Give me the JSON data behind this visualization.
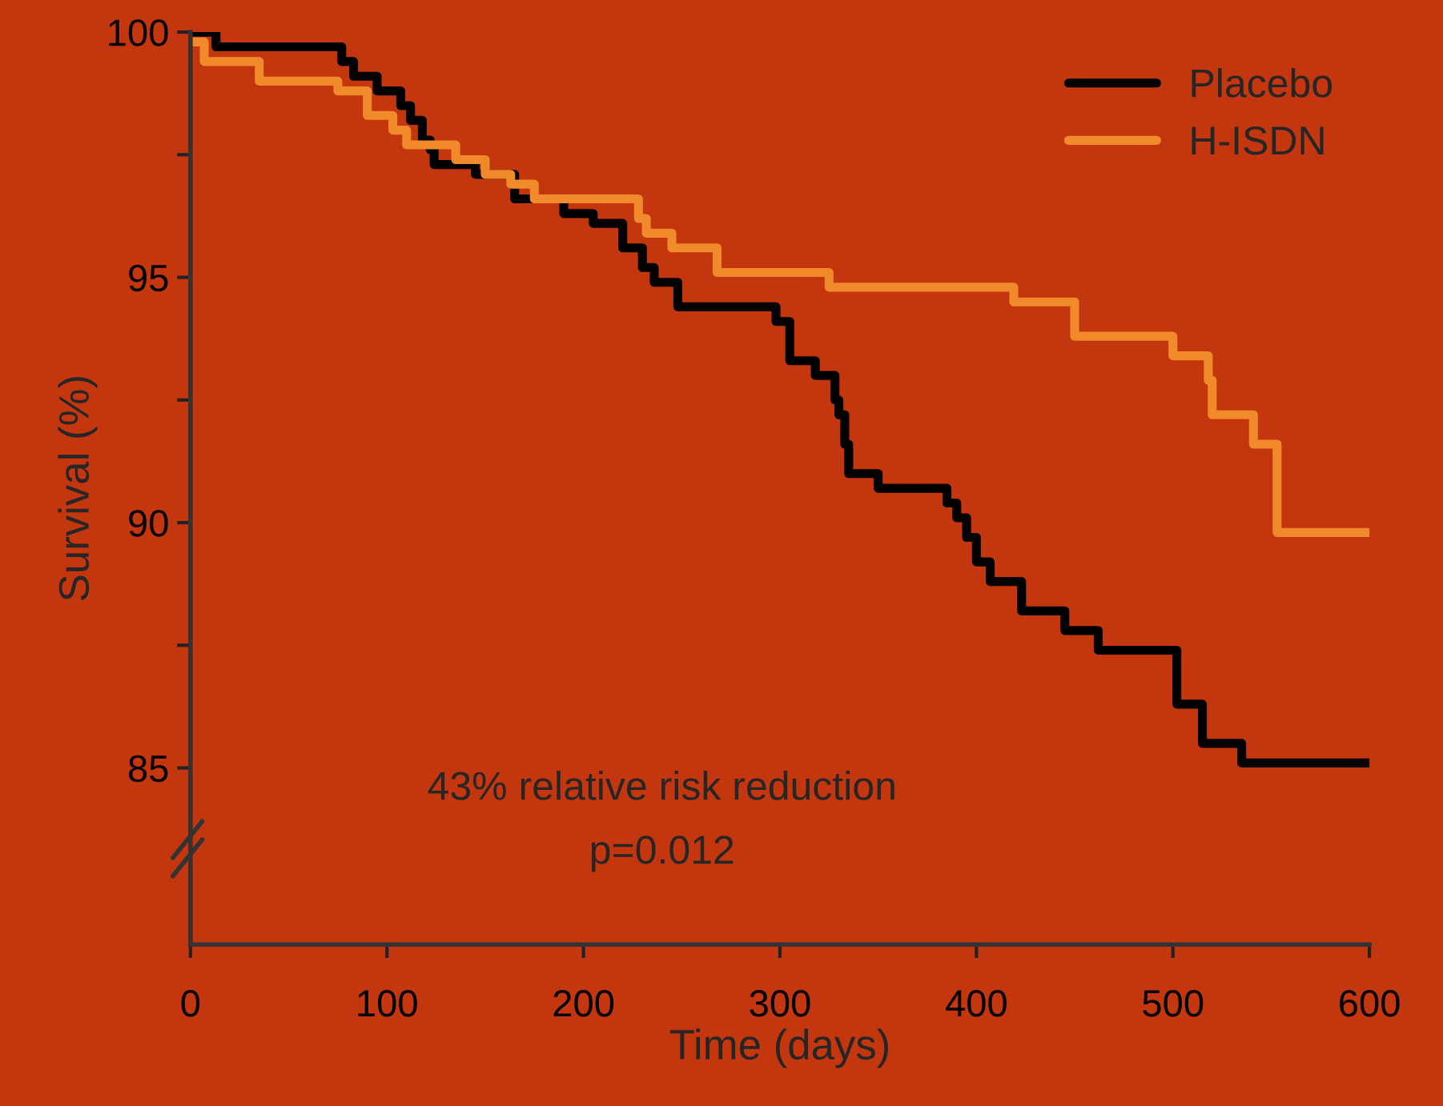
{
  "chart_data": {
    "type": "step",
    "xlabel": "Time (days)",
    "ylabel": "Survival (%)",
    "xlim": [
      0,
      600
    ],
    "xticks": [
      0,
      100,
      200,
      300,
      400,
      500,
      600
    ],
    "ylim": [
      81.4,
      100
    ],
    "yticks": [
      {
        "value": 85,
        "label": "85"
      },
      {
        "value": 87.5,
        "label": null
      },
      {
        "value": 90,
        "label": "90"
      },
      {
        "value": 92.5,
        "label": null
      },
      {
        "value": 95,
        "label": "95"
      },
      {
        "value": 97.5,
        "label": null
      },
      {
        "value": 100,
        "label": "100"
      }
    ],
    "grid": false,
    "legend": "top right",
    "line_style": "solid",
    "marker": "none",
    "annotations": [
      "43% relative risk reduction",
      "p=0.012"
    ],
    "series": [
      {
        "name": "Placebo",
        "color": "#000000",
        "x": [
          0,
          13,
          77,
          83,
          95,
          107,
          112,
          118,
          122,
          124,
          145,
          165,
          190,
          205,
          220,
          230,
          236,
          248,
          298,
          305,
          318,
          328,
          330,
          333,
          335,
          350,
          385,
          390,
          395,
          400,
          407,
          423,
          445,
          462,
          502,
          515,
          535,
          600
        ],
        "values": [
          100,
          99.7,
          99.4,
          99.1,
          98.8,
          98.5,
          98.2,
          97.8,
          97.6,
          97.3,
          97.1,
          96.6,
          96.3,
          96.1,
          95.6,
          95.2,
          94.9,
          94.4,
          94.1,
          93.3,
          93.0,
          92.5,
          92.2,
          91.6,
          91.0,
          90.7,
          90.4,
          90.1,
          89.7,
          89.2,
          88.8,
          88.2,
          87.8,
          87.4,
          86.3,
          85.5,
          85.1,
          85.1
        ]
      },
      {
        "name": "H-ISDN",
        "color": "#f08a2a",
        "x": [
          0,
          7,
          35,
          75,
          90,
          103,
          110,
          135,
          150,
          163,
          175,
          228,
          232,
          245,
          268,
          325,
          419,
          450,
          500,
          518,
          520,
          541,
          553,
          600
        ],
        "values": [
          99.8,
          99.4,
          99.0,
          98.8,
          98.3,
          98.0,
          97.7,
          97.4,
          97.1,
          96.9,
          96.6,
          96.2,
          95.9,
          95.6,
          95.1,
          94.8,
          94.5,
          93.8,
          93.4,
          92.9,
          92.2,
          91.6,
          89.8,
          89.8
        ]
      }
    ]
  }
}
